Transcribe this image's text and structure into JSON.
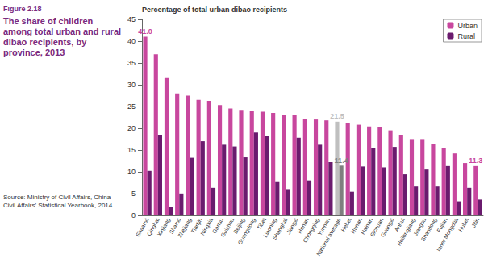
{
  "figure_label": "Figure 2.18",
  "title": "The share of children among total urban and rural dibao recipients, by province, 2013",
  "source": "Source: Ministry of Civil Affairs, China Civil Affairs' Statistical Yearbook, 2014",
  "chart_data": {
    "type": "bar",
    "ylabel": "Percentage of total urban dibao recipients",
    "categories": [
      "Shaanxi",
      "Qinghai",
      "Xinjiang",
      "Shanxi",
      "Zhejiang",
      "Tianjin",
      "Ningxia",
      "Gansu",
      "Guizhou",
      "Beijing",
      "Guangdong",
      "Tibet",
      "Liaoning",
      "Shanghai",
      "Jiangxi",
      "Henan",
      "Chongqing",
      "Yunnan",
      "National average",
      "Hebei",
      "Hunan",
      "Hainan",
      "Sichuan",
      "Guangxi",
      "Anhui",
      "Heilongjiang",
      "Jiangsu",
      "Shandong",
      "Fujian",
      "Inner Mongolia",
      "Hubei",
      "Jilin"
    ],
    "series": [
      {
        "name": "Urban",
        "color": "#c8479e",
        "colors": [
          "#c8479e",
          "#c8479e",
          "#c8479e",
          "#c8479e",
          "#c8479e",
          "#c8479e",
          "#c8479e",
          "#c8479e",
          "#c8479e",
          "#c8479e",
          "#c8479e",
          "#c8479e",
          "#c8479e",
          "#c8479e",
          "#c8479e",
          "#c8479e",
          "#c8479e",
          "#c8479e",
          "#bfbfbf",
          "#c8479e",
          "#c8479e",
          "#c8479e",
          "#c8479e",
          "#c8479e",
          "#c8479e",
          "#c8479e",
          "#c8479e",
          "#c8479e",
          "#c8479e",
          "#c8479e",
          "#c8479e",
          "#c8479e"
        ],
        "values": [
          41.0,
          37,
          31.5,
          28,
          27.5,
          26.5,
          26.3,
          25.3,
          24.5,
          24.2,
          24,
          23.8,
          23.5,
          23,
          23,
          22.2,
          22,
          21.8,
          21.5,
          21.2,
          20.8,
          20.4,
          20.2,
          19.5,
          18.5,
          17.5,
          17.5,
          16.3,
          15.5,
          14.2,
          12,
          11.3
        ]
      },
      {
        "name": "Rural",
        "color": "#6a1b6e",
        "colors": [
          "#6a1b6e",
          "#6a1b6e",
          "#6a1b6e",
          "#6a1b6e",
          "#6a1b6e",
          "#6a1b6e",
          "#6a1b6e",
          "#6a1b6e",
          "#6a1b6e",
          "#6a1b6e",
          "#6a1b6e",
          "#6a1b6e",
          "#6a1b6e",
          "#6a1b6e",
          "#6a1b6e",
          "#6a1b6e",
          "#6a1b6e",
          "#6a1b6e",
          "#7f7f7f",
          "#6a1b6e",
          "#6a1b6e",
          "#6a1b6e",
          "#6a1b6e",
          "#6a1b6e",
          "#6a1b6e",
          "#6a1b6e",
          "#6a1b6e",
          "#6a1b6e",
          "#6a1b6e",
          "#6a1b6e",
          "#6a1b6e",
          "#6a1b6e"
        ],
        "values": [
          10.2,
          18.5,
          2,
          5,
          13.2,
          17,
          6.3,
          16.2,
          15.8,
          13.3,
          19,
          18.3,
          7.8,
          6,
          17.8,
          8,
          16.2,
          12.2,
          11.4,
          5.4,
          11.2,
          15.5,
          11,
          15.7,
          9.4,
          6.6,
          10.5,
          6.6,
          11.3,
          3.2,
          6.3,
          3.6
        ]
      }
    ],
    "ylim": [
      0,
      45
    ],
    "yticks": [
      0,
      5,
      10,
      15,
      20,
      25,
      30,
      35,
      40,
      45
    ],
    "grid": false,
    "legend": "upper right",
    "annotations": [
      {
        "category": "Shaanxi",
        "series": "Urban",
        "text": "41.0"
      },
      {
        "category": "National average",
        "series": "Urban",
        "text": "21.5"
      },
      {
        "category": "National average",
        "series": "Rural",
        "text": "11.4"
      },
      {
        "category": "Jilin",
        "series": "Urban",
        "text": "11.3"
      }
    ]
  }
}
